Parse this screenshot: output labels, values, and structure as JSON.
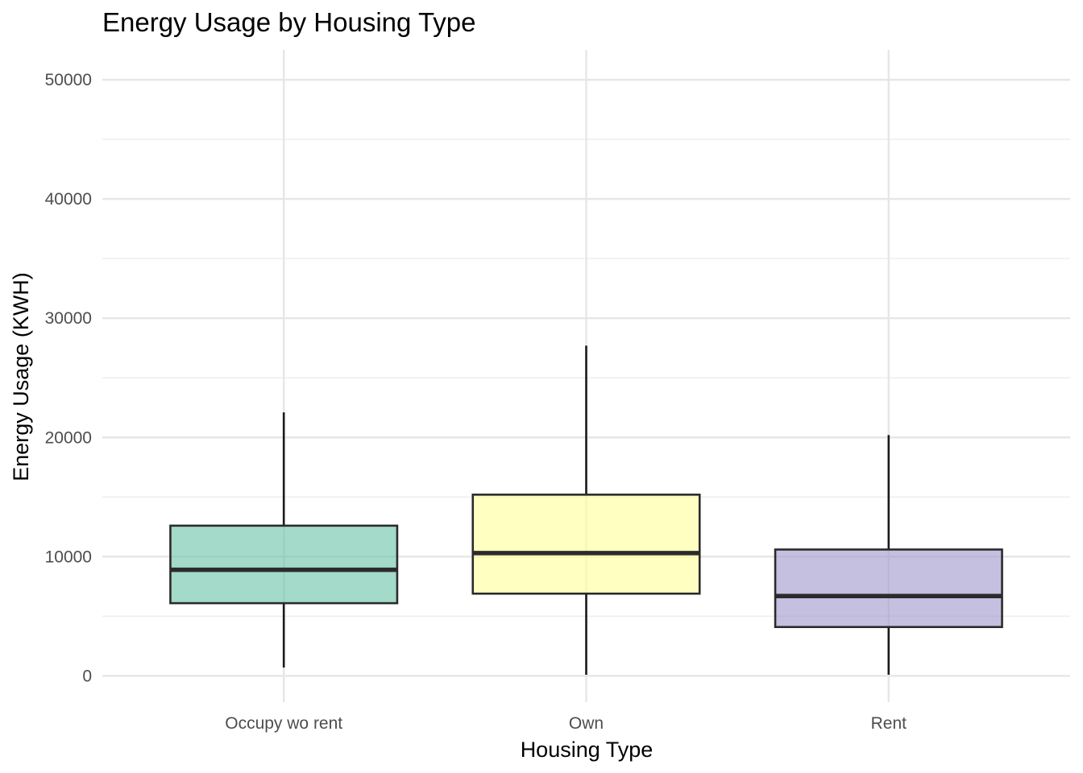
{
  "chart_data": {
    "type": "boxplot",
    "title": "Energy Usage by Housing Type",
    "xlabel": "Housing Type",
    "ylabel": "Energy Usage (KWH)",
    "ylim": [
      -2200,
      52500
    ],
    "yticks": [
      0,
      10000,
      20000,
      30000,
      40000,
      50000
    ],
    "ytick_labels": [
      "0",
      "10000",
      "20000",
      "30000",
      "40000",
      "50000"
    ],
    "grid": true,
    "legend": "none",
    "categories": [
      "Occupy wo rent",
      "Own",
      "Rent"
    ],
    "boxes": [
      {
        "category": "Occupy wo rent",
        "whisker_low": 700,
        "q1": 6100,
        "median": 8900,
        "q3": 12600,
        "whisker_high": 22100,
        "color": "#66c2a5"
      },
      {
        "category": "Own",
        "whisker_low": 100,
        "q1": 6900,
        "median": 10300,
        "q3": 15200,
        "whisker_high": 27700,
        "color": "#ffff99"
      },
      {
        "category": "Rent",
        "whisker_low": 100,
        "q1": 4100,
        "median": 6700,
        "q3": 10600,
        "whisker_high": 20200,
        "color": "#9e94cc"
      }
    ]
  }
}
